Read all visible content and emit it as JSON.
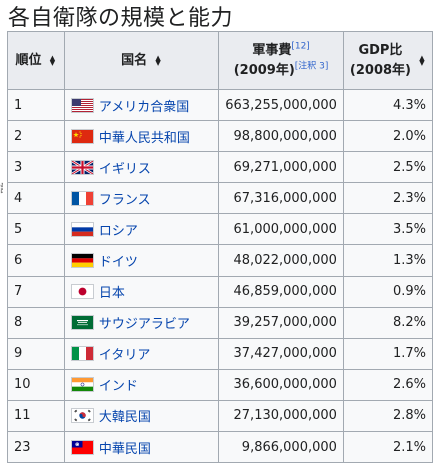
{
  "page": {
    "heading": "各自衛隊の規模と能力"
  },
  "table": {
    "headers": {
      "rank": "順位",
      "name": "国名",
      "spend_line1": "軍事費",
      "spend_ref": "[12]",
      "spend_line2": "(2009年)",
      "spend_note": "[注釈 3]",
      "gdp_line1": "GDP比",
      "gdp_line2": "(2008年)"
    },
    "rows": [
      {
        "rank": "1",
        "flag": "us-flag-icon",
        "name": "アメリカ合衆国",
        "spend": "663,255,000,000",
        "gdp": "4.3%"
      },
      {
        "rank": "2",
        "flag": "china-flag-icon",
        "name": "中華人民共和国",
        "spend": "98,800,000,000",
        "gdp": "2.0%"
      },
      {
        "rank": "3",
        "flag": "uk-flag-icon",
        "name": "イギリス",
        "spend": "69,271,000,000",
        "gdp": "2.5%"
      },
      {
        "rank": "4",
        "flag": "france-flag-icon",
        "name": "フランス",
        "spend": "67,316,000,000",
        "gdp": "2.3%"
      },
      {
        "rank": "5",
        "flag": "russia-flag-icon",
        "name": "ロシア",
        "spend": "61,000,000,000",
        "gdp": "3.5%"
      },
      {
        "rank": "6",
        "flag": "germany-flag-icon",
        "name": "ドイツ",
        "spend": "48,022,000,000",
        "gdp": "1.3%"
      },
      {
        "rank": "7",
        "flag": "japan-flag-icon",
        "name": "日本",
        "spend": "46,859,000,000",
        "gdp": "0.9%"
      },
      {
        "rank": "8",
        "flag": "saudi-arabia-flag-icon",
        "name": "サウジアラビア",
        "spend": "39,257,000,000",
        "gdp": "8.2%"
      },
      {
        "rank": "9",
        "flag": "italy-flag-icon",
        "name": "イタリア",
        "spend": "37,427,000,000",
        "gdp": "1.7%"
      },
      {
        "rank": "10",
        "flag": "india-flag-icon",
        "name": "インド",
        "spend": "36,600,000,000",
        "gdp": "2.6%"
      },
      {
        "rank": "11",
        "flag": "south-korea-flag-icon",
        "name": "大韓民国",
        "spend": "27,130,000,000",
        "gdp": "2.8%"
      },
      {
        "rank": "23",
        "flag": "taiwan-flag-icon",
        "name": "中華民国",
        "spend": "9,866,000,000",
        "gdp": "2.1%"
      }
    ]
  },
  "colors": {
    "header_bg": "#eaecf0",
    "cell_bg": "#f8f9fa",
    "border": "#a2a9b1",
    "link": "#0645ad",
    "ref_link": "#3366cc"
  }
}
